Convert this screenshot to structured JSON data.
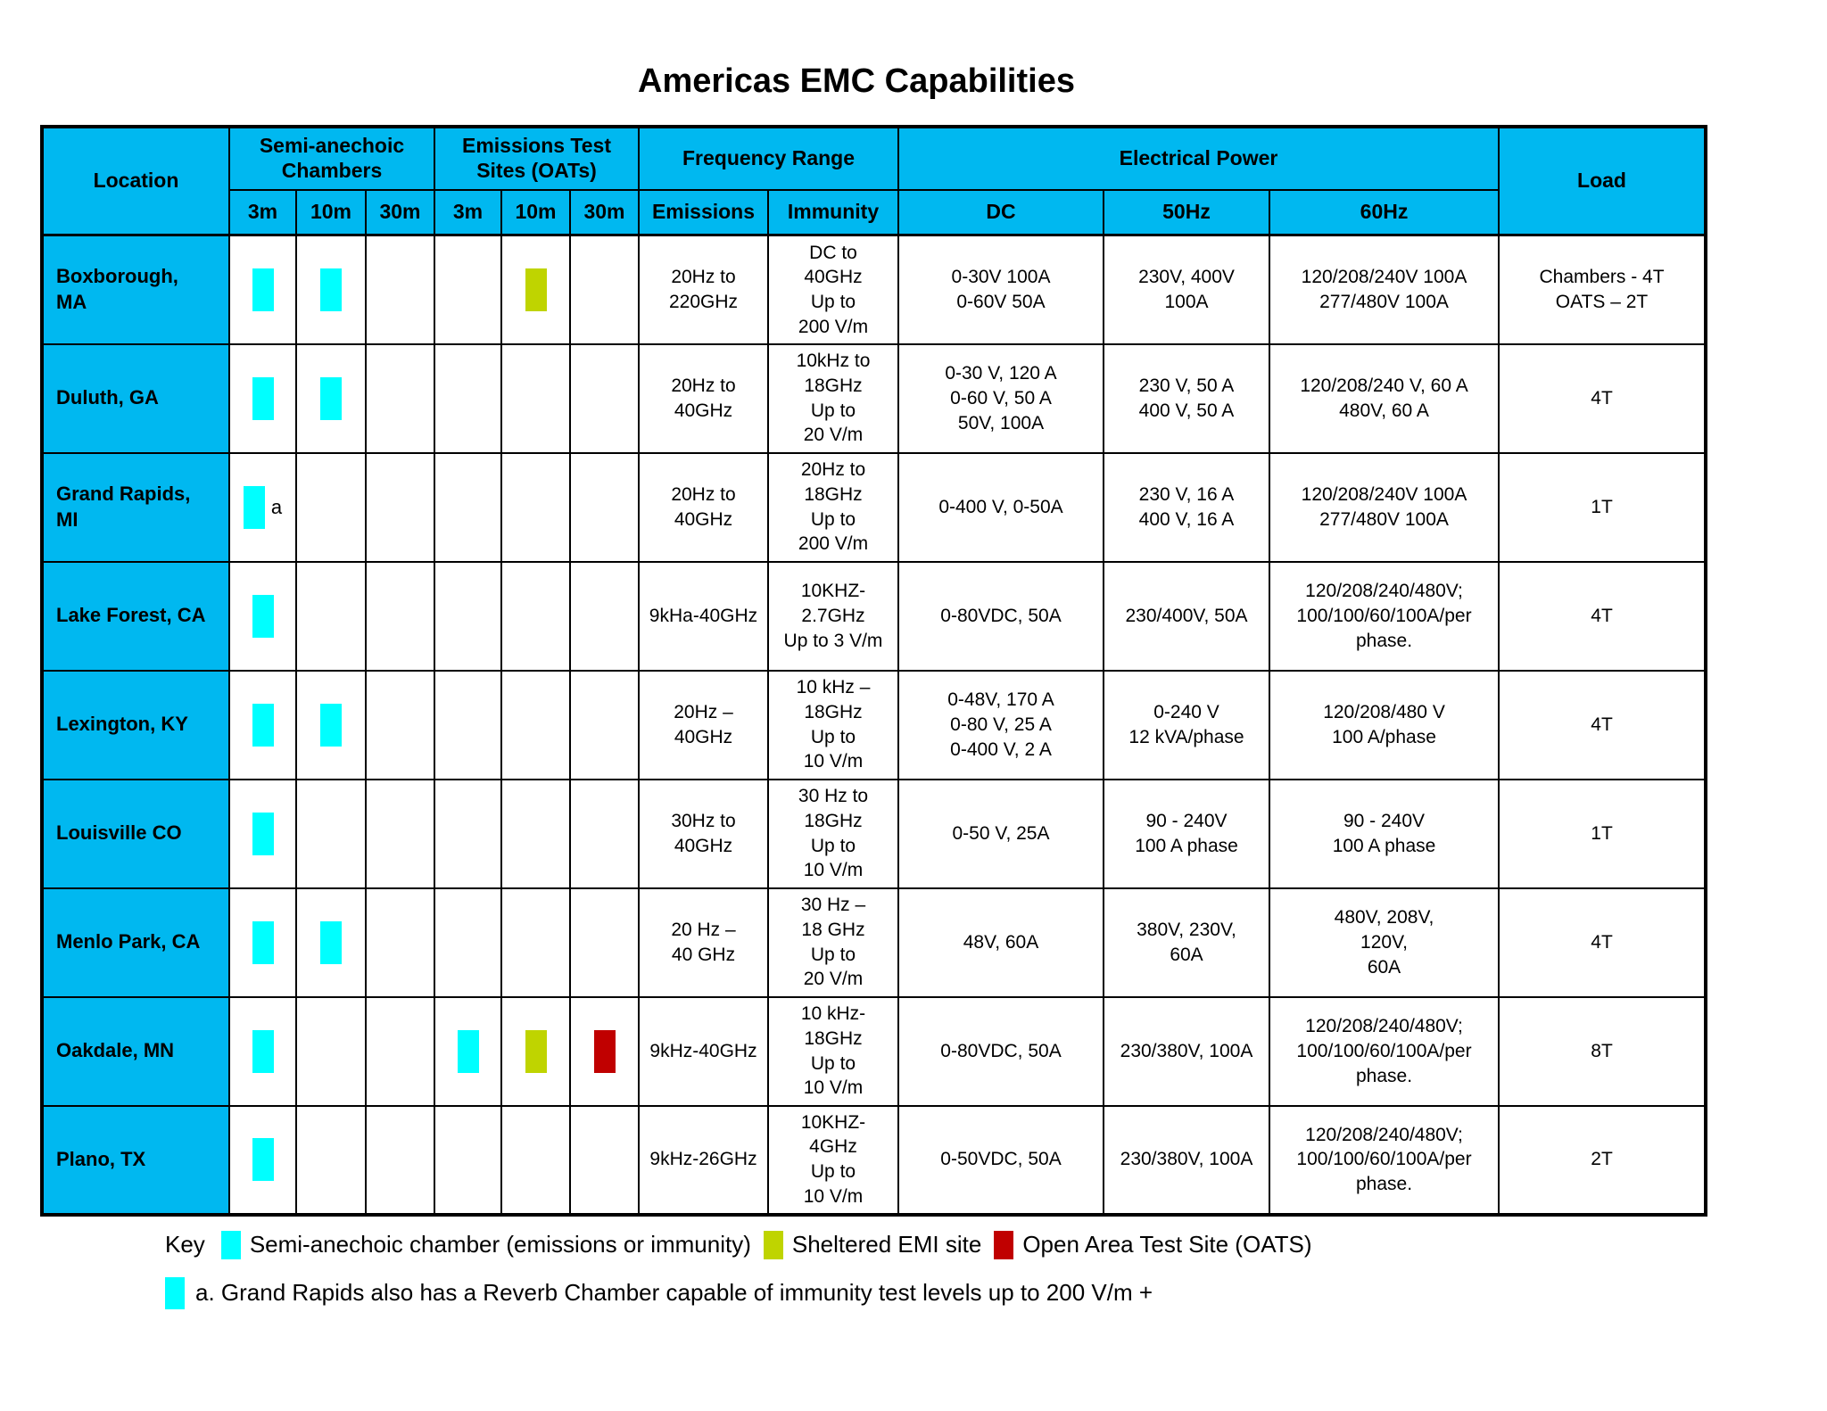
{
  "title": "Americas EMC Capabilities",
  "colors": {
    "header_bg": "#00B8F0"
  },
  "table": {
    "headers": {
      "location": "Location",
      "sac_group": "Semi-anechoic\nChambers",
      "oats_group": "Emissions Test\nSites (OATs)",
      "freq_group": "Frequency Range",
      "power_group": "Electrical Power",
      "load": "Load",
      "distance_cols": [
        "3m",
        "10m",
        "30m"
      ],
      "freq_cols": [
        "Emissions",
        "Immunity"
      ],
      "power_cols": [
        "DC",
        "50Hz",
        "60Hz"
      ]
    },
    "rows": [
      {
        "location": "Boxborough,\nMA",
        "sac": [
          "chamber",
          "chamber",
          null
        ],
        "oats": [
          null,
          "sheltered-emi",
          null
        ],
        "emissions": "20Hz to\n220GHz",
        "immunity": "DC to\n40GHz\nUp to\n200 V/m",
        "dc": "0-30V 100A\n0-60V 50A",
        "hz50": "230V, 400V\n100A",
        "hz60": "120/208/240V 100A\n277/480V 100A",
        "load": "Chambers - 4T\nOATS – 2T"
      },
      {
        "location": "Duluth, GA",
        "sac": [
          "chamber",
          "chamber",
          null
        ],
        "oats": [
          null,
          null,
          null
        ],
        "emissions": "20Hz to\n40GHz",
        "immunity": "10kHz to\n18GHz\nUp to\n20 V/m",
        "dc": "0-30 V, 120 A\n0-60 V, 50 A\n50V, 100A",
        "hz50": "230 V, 50 A\n400 V, 50 A",
        "hz60": "120/208/240 V, 60 A\n480V, 60 A",
        "load": "4T"
      },
      {
        "location": "Grand Rapids,\nMI",
        "sac": [
          "chamber",
          null,
          null
        ],
        "note": "a",
        "oats": [
          null,
          null,
          null
        ],
        "emissions": "20Hz to\n40GHz",
        "immunity": "20Hz to\n18GHz\nUp to\n200 V/m",
        "dc": "0-400 V, 0-50A",
        "hz50": "230 V, 16 A\n400 V, 16 A",
        "hz60": "120/208/240V 100A\n277/480V 100A",
        "load": "1T"
      },
      {
        "location": "Lake Forest, CA",
        "sac": [
          "chamber",
          null,
          null
        ],
        "oats": [
          null,
          null,
          null
        ],
        "emissions": "9kHa-40GHz",
        "immunity": "10KHZ-\n2.7GHz\nUp to 3 V/m",
        "dc": "0-80VDC, 50A",
        "hz50": "230/400V, 50A",
        "hz60": "120/208/240/480V;\n100/100/60/100A/per\nphase.",
        "load": "4T"
      },
      {
        "location": "Lexington, KY",
        "sac": [
          "chamber",
          "chamber",
          null
        ],
        "oats": [
          null,
          null,
          null
        ],
        "emissions": "20Hz –\n40GHz",
        "immunity": "10 kHz –\n18GHz\nUp to\n10 V/m",
        "dc": "0-48V, 170 A\n0-80 V, 25 A\n0-400 V, 2 A",
        "hz50": "0-240 V\n12 kVA/phase",
        "hz60": "120/208/480 V\n100 A/phase",
        "load": "4T"
      },
      {
        "location": "Louisville CO",
        "sac": [
          "chamber",
          null,
          null
        ],
        "oats": [
          null,
          null,
          null
        ],
        "emissions": "30Hz to\n40GHz",
        "immunity": "30 Hz to\n18GHz\nUp to\n10 V/m",
        "dc": "0-50 V, 25A",
        "hz50": "90 - 240V\n100 A phase",
        "hz60": "90 - 240V\n100 A phase",
        "load": "1T"
      },
      {
        "location": "Menlo Park, CA",
        "sac": [
          "chamber",
          "chamber",
          null
        ],
        "oats": [
          null,
          null,
          null
        ],
        "emissions": "20 Hz –\n40 GHz",
        "immunity": "30 Hz –\n18 GHz\nUp to\n20 V/m",
        "dc": "48V, 60A",
        "hz50": "380V, 230V,\n60A",
        "hz60": "480V, 208V,\n120V,\n60A",
        "load": "4T"
      },
      {
        "location": "Oakdale, MN",
        "sac": [
          "chamber",
          null,
          null
        ],
        "oats": [
          "chamber",
          "sheltered-emi",
          "oats"
        ],
        "emissions": "9kHz-40GHz",
        "immunity": "10 kHz-\n18GHz\nUp to\n10 V/m",
        "dc": "0-80VDC, 50A",
        "hz50": "230/380V, 100A",
        "hz60": "120/208/240/480V;\n100/100/60/100A/per\nphase.",
        "load": "8T"
      },
      {
        "location": "Plano, TX",
        "sac": [
          "chamber",
          null,
          null
        ],
        "oats": [
          null,
          null,
          null
        ],
        "emissions": "9kHz-26GHz",
        "immunity": "10KHZ-\n4GHz\nUp to\n10 V/m",
        "dc": "0-50VDC, 50A",
        "hz50": "230/380V, 100A",
        "hz60": "120/208/240/480V;\n100/100/60/100A/per\nphase.",
        "load": "2T"
      }
    ]
  },
  "legend": {
    "key_label": "Key",
    "items": [
      {
        "id": "chamber",
        "color": "#00FFFF",
        "label": "Semi-anechoic chamber (emissions or immunity)"
      },
      {
        "id": "sheltered-emi",
        "color": "#BFD400",
        "label": "Sheltered EMI site"
      },
      {
        "id": "oats",
        "color": "#C00000",
        "label": "Open Area Test Site (OATS)"
      }
    ],
    "footnote": {
      "marker": "chamber",
      "text": "a.  Grand Rapids also has a Reverb Chamber capable of immunity test levels up to 200 V/m +"
    }
  }
}
